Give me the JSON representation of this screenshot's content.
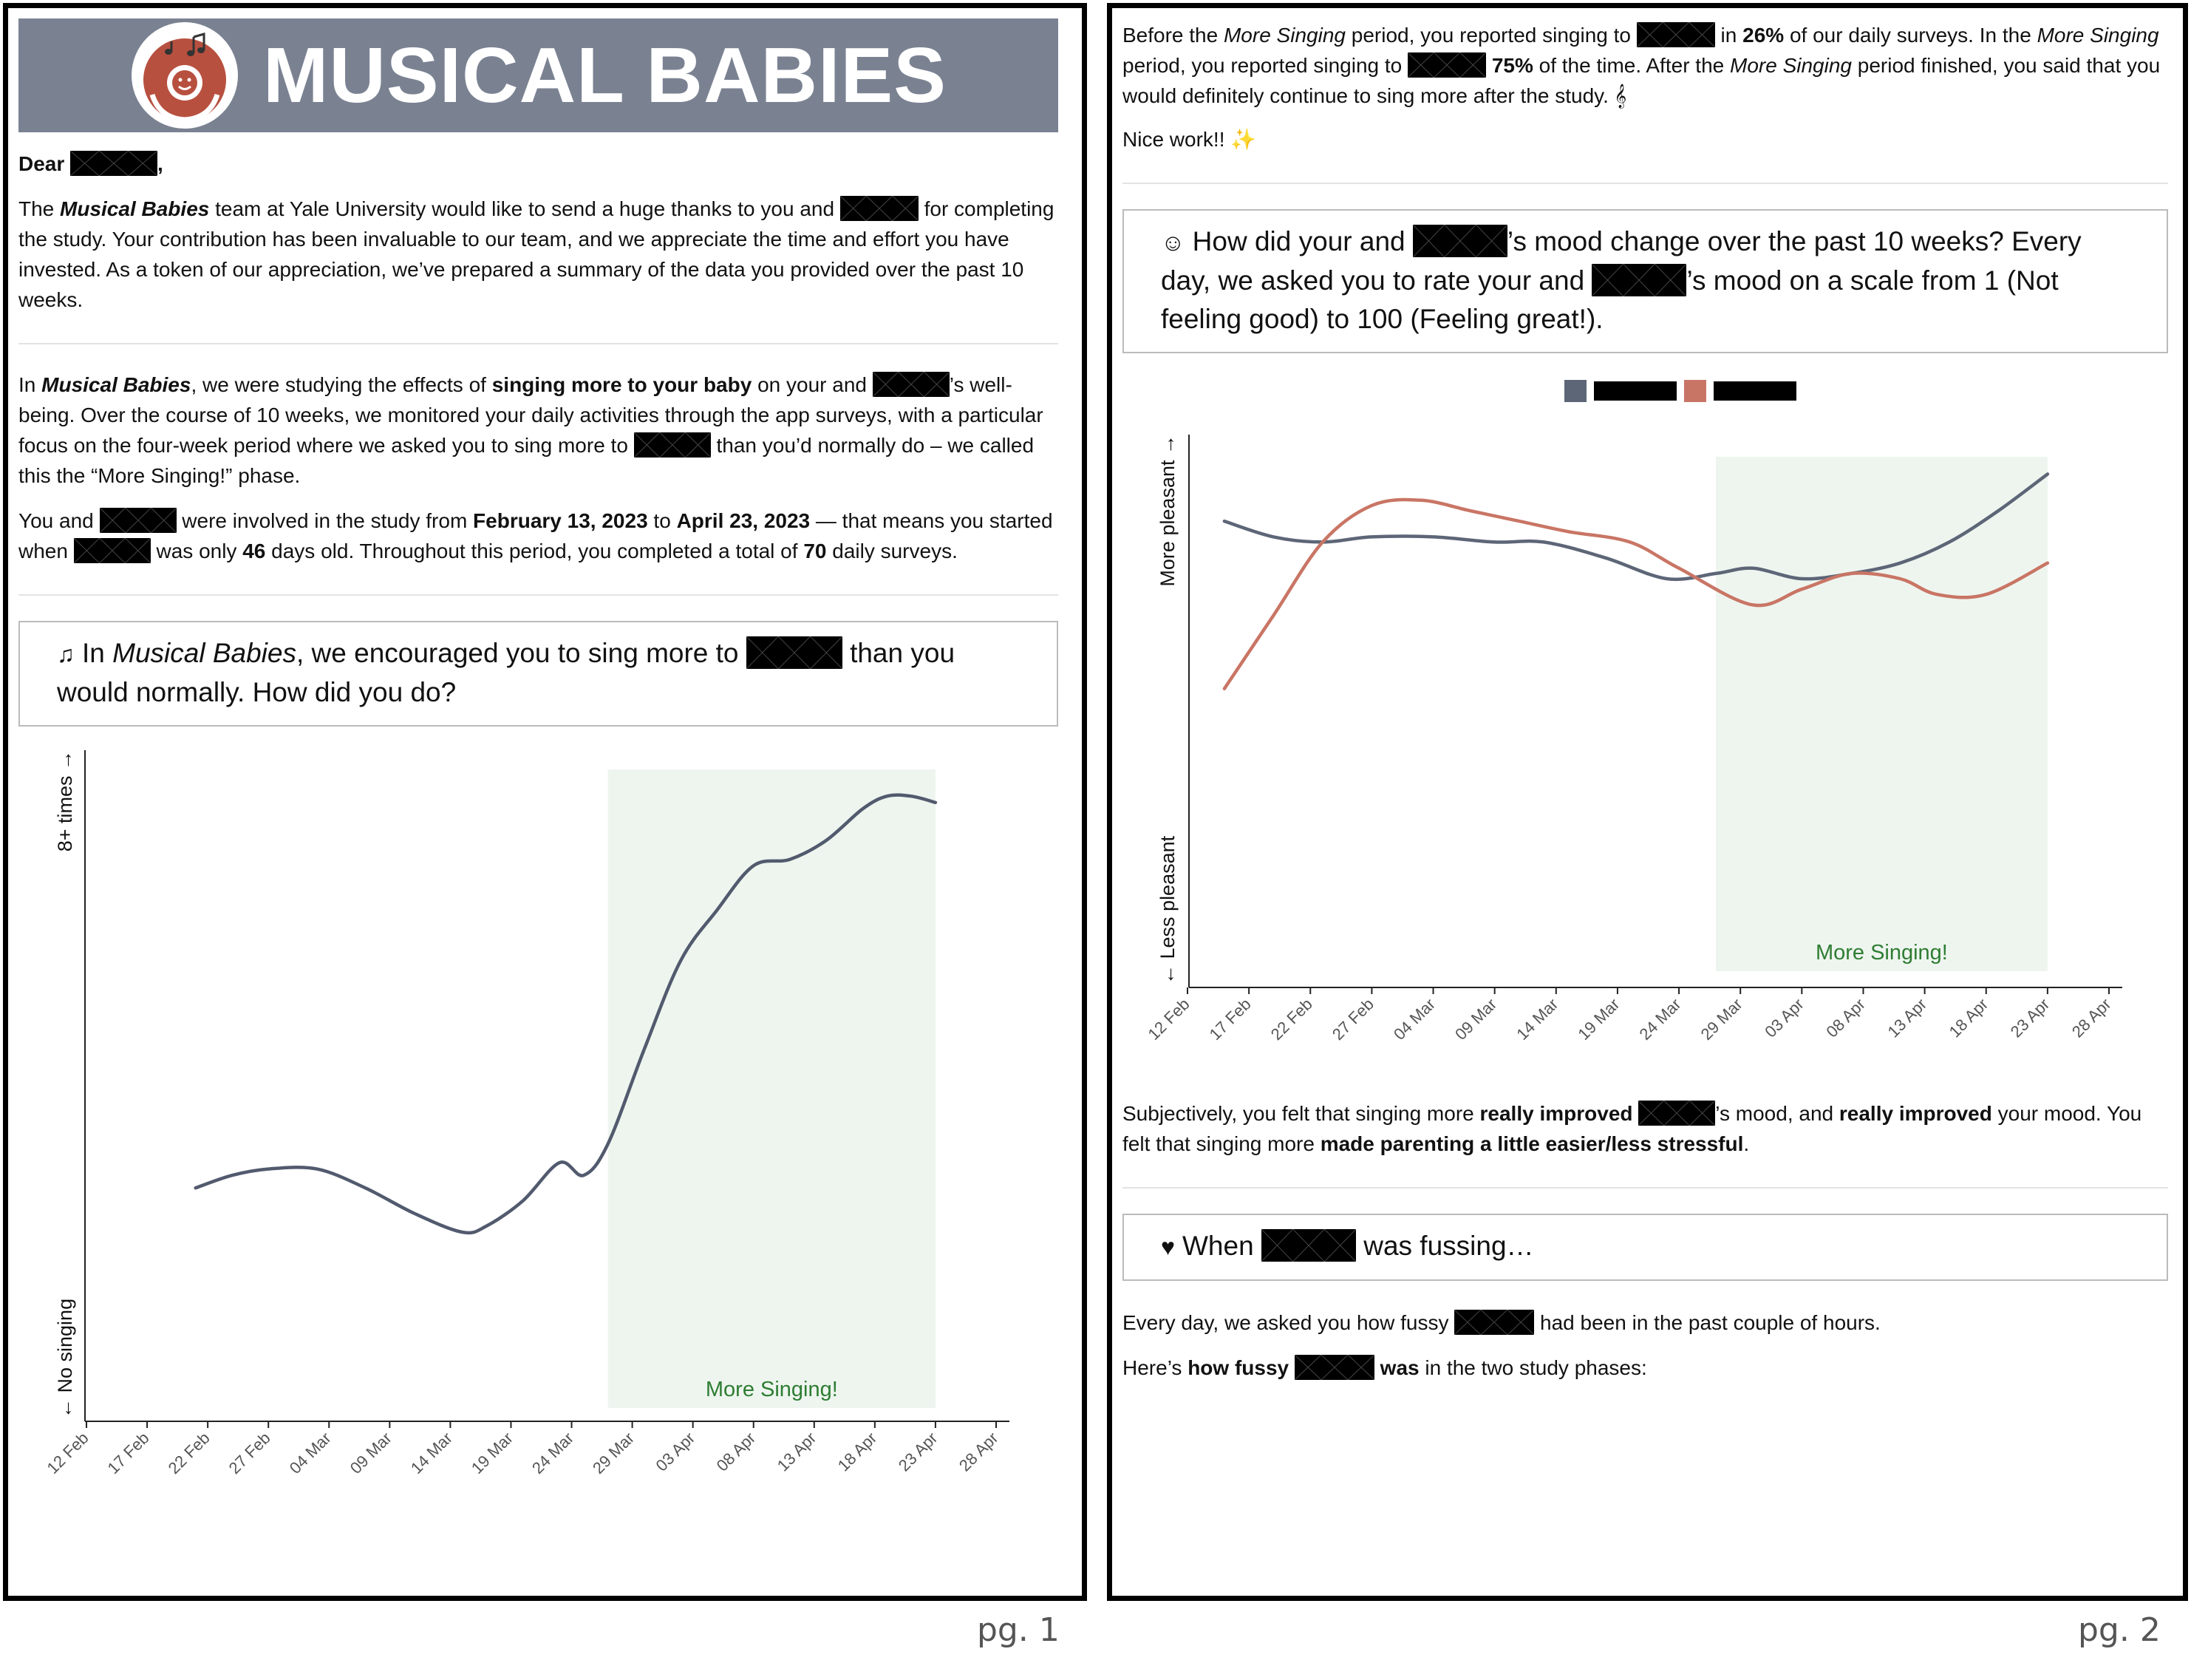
{
  "page1": {
    "banner": {
      "title": "MUSICAL BABIES",
      "logo_icon": "parent-baby-music-icon"
    },
    "greeting": "Dear",
    "intro": {
      "t1": "The ",
      "b1": "Musical Babies",
      "t2": " team at Yale University would like to send a huge thanks to you and",
      "t3": " for completing the study. Your contribution has been invaluable to our team, and we appreciate the time and effort you have invested. As a token of our appreciation, we’ve prepared a summary of the data you provided over the past 10 weeks."
    },
    "study": {
      "t1": "In ",
      "b1": "Musical Babies",
      "t2": ", we were studying the effects of ",
      "b2": "singing more to your baby",
      "t3": " on your and",
      "t4": "’s well-being. Over the course of 10 weeks, we monitored your daily activities through the app surveys, with a particular focus on the four-week period where we asked you to sing more to",
      "t5": " than you’d normally do – we called this the “More Singing!” phase."
    },
    "dates": {
      "t1": "You and",
      "t2": " were involved in the study from ",
      "b1": "February 13, 2023",
      "t3": " to ",
      "b2": "April 23, 2023",
      "t4": " — that means you started when",
      "t5": " was only ",
      "b3": "46",
      "t6": " days old. Throughout this period, you completed a total of ",
      "b4": "70",
      "t7": " daily surveys."
    },
    "question": {
      "icon": "music-notes-icon",
      "t1": "In ",
      "i1": "Musical Babies",
      "t2": ", we encouraged you to sing more to",
      "t3": " than you would normally. How did you do?"
    },
    "page_number": "pg. 1"
  },
  "page2": {
    "summary": {
      "t1": "Before the ",
      "i1": "More Singing",
      "t2": " period, you reported singing to",
      "t3": " in ",
      "b1": "26%",
      "t4": " of our daily surveys. In the ",
      "i2": "More Singing",
      "t5": " period, you reported singing to",
      "b2": "75%",
      "t6": " of the time. After the ",
      "i3": "More Singing",
      "t7": " period finished, you said that you would definitely continue to sing more after the study. ",
      "icon": "music-score-icon"
    },
    "nice": "Nice work!! ",
    "nice_icon": "party-popper-icon",
    "mood_question": {
      "icon": "baby-face-icon",
      "t1": "How did your and",
      "t2": "’s mood change over the past 10 weeks? Every day, we asked you to rate your and",
      "t3": "’s mood on a scale from 1 (Not feeling good) to 100 (Feeling great!)."
    },
    "mood_result": {
      "t1": "Subjectively, you felt that singing more ",
      "b1": "really improved",
      "t2": "’s mood, and ",
      "b2": "really improved",
      "t3": " your mood. You felt that singing more ",
      "b3": "made parenting a little easier/less stressful",
      "t4": "."
    },
    "fuss_question": {
      "icon": "person-rocking-baby-icon",
      "t1": "When",
      "t2": " was fussing…"
    },
    "fuss_daily": {
      "t1": "Every day, we asked you how fussy",
      "t2": " had been in the past couple of hours."
    },
    "fuss_phases": {
      "t1": "Here’s ",
      "b1": "how fussy",
      "b2": " was",
      "t2": " in the two study phases:"
    },
    "page_number": "pg. 2"
  },
  "chart_data": [
    {
      "type": "line",
      "title": "",
      "xlabel": "",
      "ylabel_top": "8+ times →",
      "ylabel_bottom": "← No singing",
      "x_ticks": [
        "12 Feb",
        "17 Feb",
        "22 Feb",
        "27 Feb",
        "04 Mar",
        "09 Mar",
        "14 Mar",
        "19 Mar",
        "24 Mar",
        "29 Mar",
        "03 Apr",
        "08 Apr",
        "13 Apr",
        "18 Apr",
        "23 Apr",
        "28 Apr"
      ],
      "x_range": [
        "2023-02-12",
        "2023-04-28"
      ],
      "ylim": [
        0,
        100
      ],
      "grid": false,
      "shaded_region": {
        "label": "More Singing!",
        "start": "2023-03-27",
        "end": "2023-04-23",
        "color": "#eef5ef"
      },
      "series": [
        {
          "color": "#525a6e",
          "points": [
            [
              "2023-02-21",
              34
            ],
            [
              "2023-02-24",
              36
            ],
            [
              "2023-02-27",
              37
            ],
            [
              "2023-03-03",
              37
            ],
            [
              "2023-03-07",
              34
            ],
            [
              "2023-03-11",
              30
            ],
            [
              "2023-03-15",
              27
            ],
            [
              "2023-03-17",
              28
            ],
            [
              "2023-03-20",
              32
            ],
            [
              "2023-03-23",
              38
            ],
            [
              "2023-03-25",
              36
            ],
            [
              "2023-03-27",
              41
            ],
            [
              "2023-03-30",
              56
            ],
            [
              "2023-04-02",
              70
            ],
            [
              "2023-04-05",
              78
            ],
            [
              "2023-04-08",
              85
            ],
            [
              "2023-04-11",
              86
            ],
            [
              "2023-04-14",
              89
            ],
            [
              "2023-04-17",
              94
            ],
            [
              "2023-04-19",
              96
            ],
            [
              "2023-04-21",
              96
            ],
            [
              "2023-04-23",
              95
            ]
          ]
        }
      ]
    },
    {
      "type": "line",
      "title": "",
      "xlabel": "",
      "ylabel_top": "More pleasant →",
      "ylabel_bottom": "← Less pleasant",
      "legend_position": "top-center",
      "x_ticks": [
        "12 Feb",
        "17 Feb",
        "22 Feb",
        "27 Feb",
        "04 Mar",
        "09 Mar",
        "14 Mar",
        "19 Mar",
        "24 Mar",
        "29 Mar",
        "03 Apr",
        "08 Apr",
        "13 Apr",
        "18 Apr",
        "23 Apr",
        "28 Apr"
      ],
      "x_range": [
        "2023-02-12",
        "2023-04-28"
      ],
      "ylim": [
        0,
        100
      ],
      "grid": false,
      "shaded_region": {
        "label": "More Singing!",
        "start": "2023-03-27",
        "end": "2023-04-23",
        "color": "#eef5ef"
      },
      "series": [
        {
          "color": "#5d6677",
          "points": [
            [
              "2023-02-15",
              86
            ],
            [
              "2023-02-19",
              83
            ],
            [
              "2023-02-23",
              82
            ],
            [
              "2023-02-27",
              83
            ],
            [
              "2023-03-04",
              83
            ],
            [
              "2023-03-09",
              82
            ],
            [
              "2023-03-13",
              82
            ],
            [
              "2023-03-18",
              79
            ],
            [
              "2023-03-23",
              75
            ],
            [
              "2023-03-27",
              76
            ],
            [
              "2023-03-30",
              77
            ],
            [
              "2023-04-03",
              75
            ],
            [
              "2023-04-07",
              76
            ],
            [
              "2023-04-11",
              78
            ],
            [
              "2023-04-15",
              82
            ],
            [
              "2023-04-19",
              88
            ],
            [
              "2023-04-23",
              95
            ]
          ]
        },
        {
          "color": "#c97565",
          "points": [
            [
              "2023-02-15",
              54
            ],
            [
              "2023-02-19",
              68
            ],
            [
              "2023-02-23",
              82
            ],
            [
              "2023-02-27",
              89
            ],
            [
              "2023-03-03",
              90
            ],
            [
              "2023-03-07",
              88
            ],
            [
              "2023-03-11",
              86
            ],
            [
              "2023-03-15",
              84
            ],
            [
              "2023-03-20",
              82
            ],
            [
              "2023-03-24",
              77
            ],
            [
              "2023-03-30",
              70
            ],
            [
              "2023-04-03",
              73
            ],
            [
              "2023-04-07",
              76
            ],
            [
              "2023-04-11",
              75
            ],
            [
              "2023-04-14",
              72
            ],
            [
              "2023-04-18",
              72
            ],
            [
              "2023-04-23",
              78
            ]
          ]
        }
      ]
    }
  ]
}
